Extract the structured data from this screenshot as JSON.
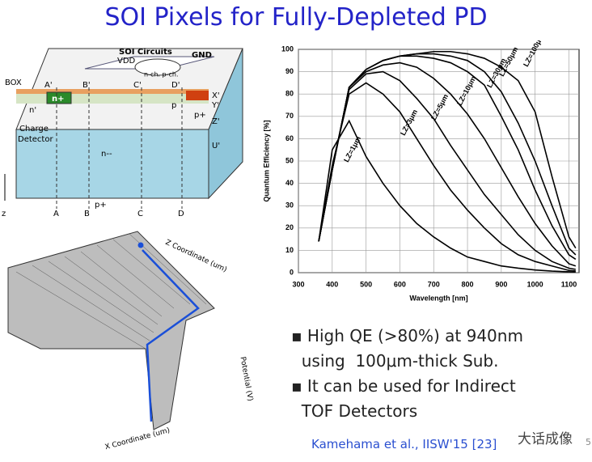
{
  "title": "SOI Pixels for Fully-Depleted PD",
  "diagram": {
    "labels": {
      "box": "BOX",
      "soi": "SOI Circuits",
      "vdd": "VDD",
      "gnd": "GND",
      "nchpch": "n-ch. p-ch.",
      "a1": "A'",
      "b1": "B'",
      "c1": "C'",
      "d1": "D'",
      "nplus": "n+",
      "nprime": "n'",
      "p": "p",
      "pplus1": "p+",
      "x1": "X'",
      "y1": "Y'",
      "z1": "Z'",
      "u1": "U'",
      "charge": "Charge",
      "detector": "Detector",
      "nmm": "n--",
      "pplus2": "p+",
      "a": "A",
      "b": "B",
      "c": "C",
      "d": "D",
      "z": "z"
    }
  },
  "surface": {
    "z_axis": "Z Coordinate (um)",
    "x_axis": "X Coordinate (um)",
    "potential": "Potential (V)"
  },
  "chart_data": {
    "type": "line",
    "x_label": "Wavelength [nm]",
    "y_label": "Quantum Efficiency [%]",
    "x": [
      360,
      400,
      450,
      500,
      550,
      600,
      650,
      700,
      750,
      800,
      850,
      900,
      950,
      1000,
      1050,
      1100,
      1120
    ],
    "series": [
      {
        "name": "LZ=1μm",
        "color": "#000000",
        "values": [
          14,
          55,
          68,
          52,
          40,
          30,
          22,
          16,
          11,
          7,
          5,
          3,
          2,
          1.2,
          0.7,
          0.4,
          0.3
        ]
      },
      {
        "name": "LZ=3μm",
        "color": "#000000",
        "values": [
          14,
          48,
          80,
          85,
          80,
          72,
          60,
          48,
          37,
          28,
          20,
          13,
          8,
          5,
          3,
          1,
          0.8
        ]
      },
      {
        "name": "LZ=5μm",
        "color": "#000000",
        "values": [
          14,
          47,
          82,
          89,
          90,
          86,
          78,
          69,
          57,
          46,
          35,
          26,
          17,
          10,
          5,
          2,
          1.5
        ]
      },
      {
        "name": "LZ=10μm",
        "color": "#000000",
        "values": [
          14,
          46,
          83,
          90,
          93,
          94,
          92,
          87,
          80,
          71,
          60,
          47,
          34,
          22,
          12,
          4,
          3
        ]
      },
      {
        "name": "LZ=30μm",
        "color": "#000000",
        "values": [
          14,
          46,
          83,
          91,
          95,
          97,
          97,
          96,
          94,
          90,
          84,
          70,
          55,
          37,
          21,
          8,
          6
        ]
      },
      {
        "name": "LZ=50μm",
        "color": "#000000",
        "values": [
          14,
          46,
          83,
          91,
          95,
          97,
          98,
          98,
          97,
          95,
          90,
          81,
          67,
          50,
          30,
          11,
          8
        ]
      },
      {
        "name": "LZ=100μm",
        "color": "#000000",
        "values": [
          14,
          46,
          83,
          91,
          95,
          97,
          98,
          99,
          99,
          98,
          96,
          92,
          86,
          72,
          43,
          16,
          11
        ]
      }
    ],
    "xlim": [
      300,
      1130
    ],
    "ylim": [
      0,
      100
    ],
    "xticks": [
      300,
      400,
      500,
      600,
      700,
      800,
      900,
      1000,
      1100
    ],
    "yticks": [
      0,
      10,
      20,
      30,
      40,
      50,
      60,
      70,
      80,
      90,
      100
    ],
    "grid": true
  },
  "bullets": [
    "High QE (>80%) at 940nm",
    "using  100μm-thick Sub.",
    "It can be used for Indirect",
    "TOF Detectors"
  ],
  "citation": "Kamehama et al., IISW'15 [23]",
  "watermark": "大话成像",
  "page_number": "5"
}
